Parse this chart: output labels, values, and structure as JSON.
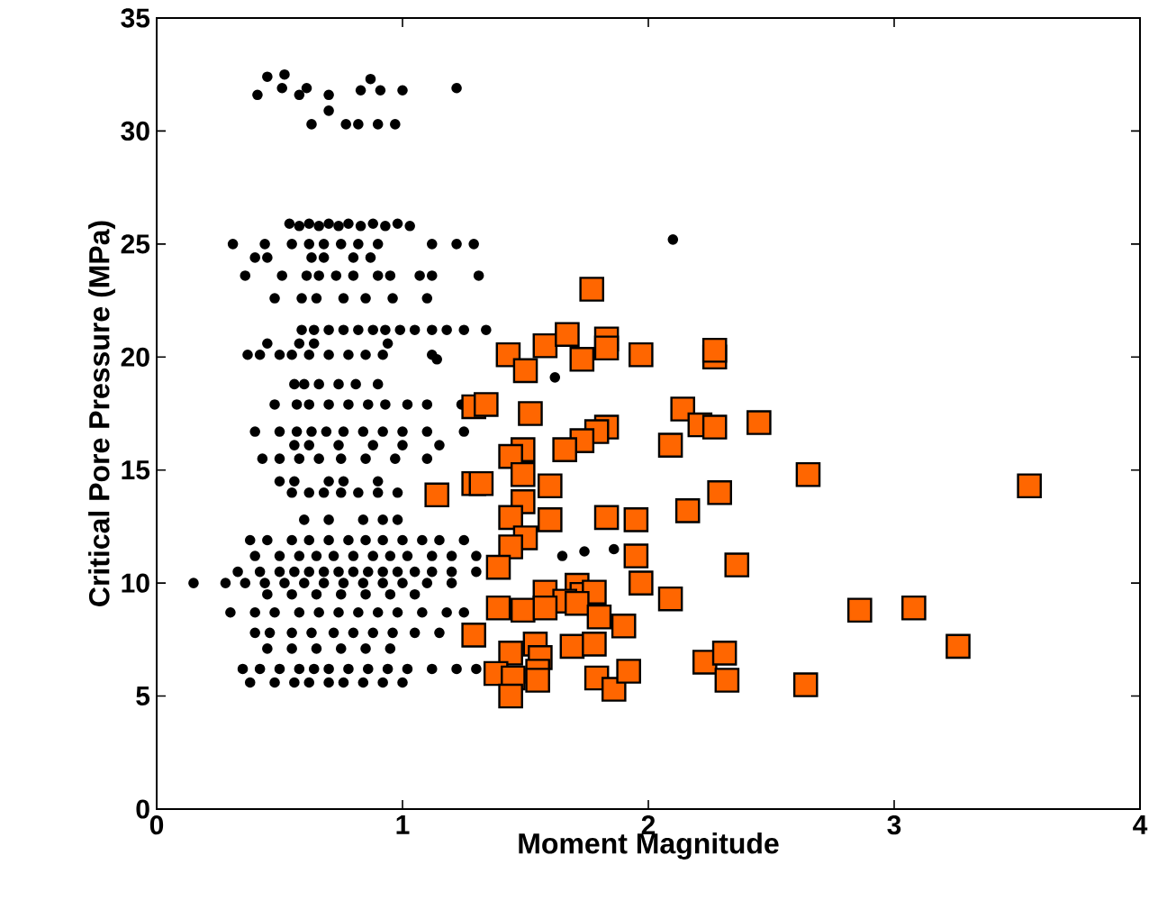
{
  "chart_data": {
    "type": "scatter",
    "xlabel": "Moment Magnitude",
    "ylabel": "Critical Pore Pressure (MPa)",
    "xlim": [
      0,
      4
    ],
    "ylim": [
      0,
      35
    ],
    "xticks": [
      0,
      1,
      2,
      3,
      4
    ],
    "yticks": [
      0,
      5,
      10,
      15,
      20,
      25,
      30,
      35
    ],
    "series": [
      {
        "color": "#000000",
        "marker": "circle",
        "x": [
          0.41,
          0.45,
          0.52,
          0.51,
          0.58,
          0.61,
          0.7,
          0.7,
          0.63,
          0.77,
          0.82,
          0.9,
          0.97,
          0.83,
          0.87,
          0.91,
          1.0,
          1.22,
          0.54,
          0.58,
          0.62,
          0.66,
          0.7,
          0.74,
          0.78,
          0.83,
          0.88,
          0.93,
          0.98,
          1.03,
          0.31,
          0.44,
          0.55,
          0.62,
          0.68,
          0.75,
          0.82,
          0.9,
          1.12,
          1.22,
          1.29,
          0.4,
          0.45,
          0.63,
          0.68,
          0.8,
          0.87,
          0.36,
          0.51,
          0.61,
          0.66,
          0.73,
          0.8,
          0.9,
          0.95,
          1.07,
          1.12,
          1.31,
          0.48,
          0.59,
          0.65,
          0.76,
          0.85,
          0.96,
          1.1,
          0.59,
          0.64,
          0.7,
          0.76,
          0.82,
          0.88,
          0.93,
          0.99,
          1.05,
          1.12,
          1.18,
          1.25,
          1.34,
          0.37,
          0.42,
          0.5,
          0.55,
          0.62,
          0.7,
          0.78,
          0.85,
          0.92,
          1.12,
          0.45,
          0.58,
          0.64,
          0.94,
          0.56,
          0.6,
          0.66,
          0.74,
          0.81,
          0.9,
          0.48,
          0.57,
          0.62,
          0.7,
          0.78,
          0.86,
          0.93,
          1.02,
          1.1,
          1.24,
          0.4,
          0.5,
          0.57,
          0.63,
          0.69,
          0.76,
          0.84,
          0.92,
          1.0,
          1.1,
          1.25,
          0.56,
          0.62,
          0.74,
          0.88,
          1.0,
          1.15,
          0.43,
          0.5,
          0.58,
          0.66,
          0.75,
          0.85,
          0.97,
          1.1,
          0.5,
          0.56,
          0.7,
          0.76,
          0.9,
          0.55,
          0.62,
          0.68,
          0.75,
          0.82,
          0.9,
          0.98,
          0.6,
          0.7,
          0.84,
          0.92,
          0.98,
          0.38,
          0.45,
          0.55,
          0.62,
          0.7,
          0.78,
          0.85,
          0.92,
          1.0,
          1.08,
          1.15,
          1.25,
          0.4,
          0.5,
          0.58,
          0.65,
          0.72,
          0.8,
          0.88,
          0.95,
          1.02,
          1.12,
          1.2,
          1.3,
          1.65,
          1.74,
          1.86,
          0.33,
          0.42,
          0.5,
          0.56,
          0.62,
          0.68,
          0.74,
          0.8,
          0.86,
          0.92,
          0.98,
          1.05,
          1.12,
          1.2,
          1.3,
          0.15,
          0.28,
          0.36,
          0.44,
          0.52,
          0.6,
          0.68,
          0.76,
          0.84,
          0.92,
          1.0,
          1.1,
          1.2,
          0.45,
          0.55,
          0.65,
          0.75,
          0.85,
          0.95,
          1.05,
          0.3,
          0.4,
          0.48,
          0.58,
          0.66,
          0.74,
          0.82,
          0.9,
          0.98,
          1.08,
          1.18,
          1.25,
          0.4,
          0.46,
          0.55,
          0.63,
          0.72,
          0.8,
          0.88,
          0.96,
          1.05,
          1.15,
          0.45,
          0.55,
          0.65,
          0.75,
          0.85,
          0.95,
          0.35,
          0.42,
          0.5,
          0.58,
          0.64,
          0.7,
          0.78,
          0.86,
          0.94,
          1.02,
          1.12,
          1.22,
          1.3,
          0.38,
          0.48,
          0.56,
          0.62,
          0.7,
          0.76,
          0.84,
          0.92,
          1.0,
          2.1,
          1.62,
          1.14
        ],
        "values": [
          31.6,
          32.4,
          32.5,
          31.9,
          31.6,
          31.9,
          31.6,
          30.9,
          30.3,
          30.3,
          30.3,
          30.3,
          30.3,
          31.8,
          32.3,
          31.8,
          31.8,
          31.9,
          25.9,
          25.8,
          25.9,
          25.8,
          25.9,
          25.8,
          25.9,
          25.8,
          25.9,
          25.8,
          25.9,
          25.8,
          25.0,
          25.0,
          25.0,
          25.0,
          25.0,
          25.0,
          25.0,
          25.0,
          25.0,
          25.0,
          25.0,
          24.4,
          24.4,
          24.4,
          24.4,
          24.4,
          24.4,
          23.6,
          23.6,
          23.6,
          23.6,
          23.6,
          23.6,
          23.6,
          23.6,
          23.6,
          23.6,
          23.6,
          22.6,
          22.6,
          22.6,
          22.6,
          22.6,
          22.6,
          22.6,
          21.2,
          21.2,
          21.2,
          21.2,
          21.2,
          21.2,
          21.2,
          21.2,
          21.2,
          21.2,
          21.2,
          21.2,
          21.2,
          20.1,
          20.1,
          20.1,
          20.1,
          20.1,
          20.1,
          20.1,
          20.1,
          20.1,
          20.1,
          20.6,
          20.6,
          20.6,
          20.6,
          18.8,
          18.8,
          18.8,
          18.8,
          18.8,
          18.8,
          17.9,
          17.9,
          17.9,
          17.9,
          17.9,
          17.9,
          17.9,
          17.9,
          17.9,
          17.9,
          16.7,
          16.7,
          16.7,
          16.7,
          16.7,
          16.7,
          16.7,
          16.7,
          16.7,
          16.7,
          16.7,
          16.1,
          16.1,
          16.1,
          16.1,
          16.1,
          16.1,
          15.5,
          15.5,
          15.5,
          15.5,
          15.5,
          15.5,
          15.5,
          15.5,
          14.5,
          14.5,
          14.5,
          14.5,
          14.5,
          14.0,
          14.0,
          14.0,
          14.0,
          14.0,
          14.0,
          14.0,
          12.8,
          12.8,
          12.8,
          12.8,
          12.8,
          11.9,
          11.9,
          11.9,
          11.9,
          11.9,
          11.9,
          11.9,
          11.9,
          11.9,
          11.9,
          11.9,
          11.9,
          11.2,
          11.2,
          11.2,
          11.2,
          11.2,
          11.2,
          11.2,
          11.2,
          11.2,
          11.2,
          11.2,
          11.2,
          11.2,
          11.4,
          11.5,
          10.5,
          10.5,
          10.5,
          10.5,
          10.5,
          10.5,
          10.5,
          10.5,
          10.5,
          10.5,
          10.5,
          10.5,
          10.5,
          10.5,
          10.5,
          10.0,
          10.0,
          10.0,
          10.0,
          10.0,
          10.0,
          10.0,
          10.0,
          10.0,
          10.0,
          10.0,
          10.0,
          10.0,
          9.5,
          9.5,
          9.5,
          9.5,
          9.5,
          9.5,
          9.5,
          8.7,
          8.7,
          8.7,
          8.7,
          8.7,
          8.7,
          8.7,
          8.7,
          8.7,
          8.7,
          8.7,
          8.7,
          7.8,
          7.8,
          7.8,
          7.8,
          7.8,
          7.8,
          7.8,
          7.8,
          7.8,
          7.8,
          7.1,
          7.1,
          7.1,
          7.1,
          7.1,
          7.1,
          6.2,
          6.2,
          6.2,
          6.2,
          6.2,
          6.2,
          6.2,
          6.2,
          6.2,
          6.2,
          6.2,
          6.2,
          6.2,
          5.6,
          5.6,
          5.6,
          5.6,
          5.6,
          5.6,
          5.6,
          5.6,
          5.6,
          25.2,
          19.1,
          19.9
        ]
      },
      {
        "color": "#ff6600",
        "marker": "square",
        "x": [
          1.77,
          1.43,
          1.5,
          1.58,
          1.67,
          1.73,
          1.83,
          1.83,
          1.97,
          2.27,
          2.27,
          1.29,
          1.34,
          1.52,
          2.14,
          2.21,
          2.27,
          2.45,
          2.09,
          1.83,
          1.79,
          1.73,
          1.66,
          1.49,
          1.44,
          1.49,
          1.29,
          1.32,
          1.14,
          1.6,
          1.49,
          1.44,
          1.6,
          1.83,
          1.95,
          2.16,
          2.29,
          1.5,
          1.44,
          1.95,
          1.39,
          1.97,
          2.36,
          1.58,
          1.71,
          1.73,
          1.78,
          1.66,
          1.71,
          2.09,
          1.39,
          1.49,
          1.58,
          1.8,
          1.9,
          1.29,
          1.44,
          1.54,
          1.56,
          1.69,
          1.78,
          1.38,
          1.45,
          1.55,
          1.55,
          1.44,
          1.79,
          1.86,
          1.92,
          2.23,
          2.31,
          2.32,
          2.65,
          3.55,
          2.86,
          3.08,
          3.26,
          2.64
        ],
        "values": [
          23.0,
          20.1,
          19.4,
          20.5,
          21.0,
          19.9,
          20.8,
          20.4,
          20.1,
          20.0,
          20.3,
          17.8,
          17.9,
          17.5,
          17.7,
          17.0,
          16.9,
          17.1,
          16.1,
          16.9,
          16.7,
          16.3,
          15.9,
          15.9,
          15.6,
          14.8,
          14.4,
          14.4,
          13.9,
          14.3,
          13.6,
          12.9,
          12.8,
          12.9,
          12.8,
          13.2,
          14.0,
          12.0,
          11.6,
          11.2,
          10.7,
          10.0,
          10.8,
          9.6,
          9.9,
          9.5,
          9.6,
          9.2,
          9.1,
          9.3,
          8.9,
          8.8,
          8.9,
          8.5,
          8.1,
          7.7,
          6.9,
          7.3,
          6.7,
          7.2,
          7.3,
          6.0,
          5.8,
          6.1,
          5.7,
          5.0,
          5.8,
          5.3,
          6.1,
          6.5,
          6.9,
          5.7,
          14.8,
          14.3,
          8.8,
          8.9,
          7.2,
          5.5
        ]
      }
    ]
  }
}
